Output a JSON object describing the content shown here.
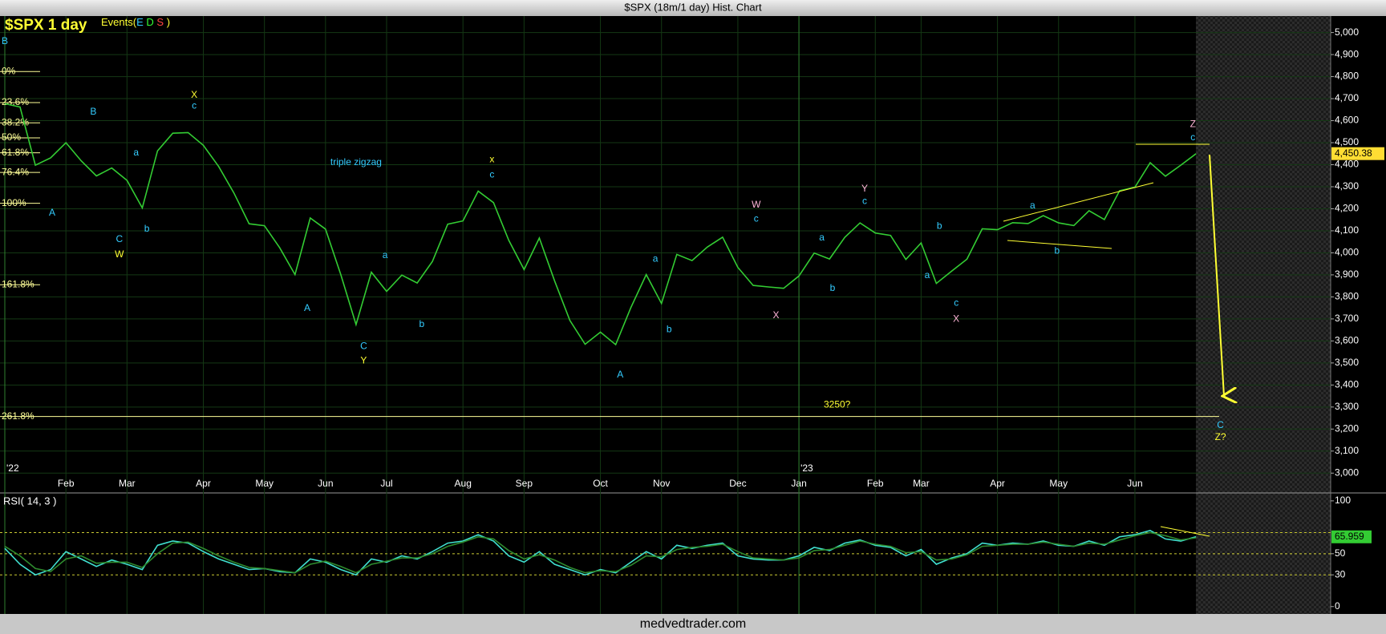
{
  "window": {
    "title": "$SPX (18m/1 day) Hist. Chart",
    "footer": "medvedtrader.com"
  },
  "chart_data": [
    {
      "type": "line",
      "title": "$SPX 1 day",
      "events": {
        "label": "Events(",
        "letters": [
          "E",
          "D",
          "S"
        ],
        "close": ")"
      },
      "categories": [
        null,
        null,
        null,
        null,
        "Feb",
        null,
        null,
        null,
        "Mar",
        null,
        null,
        null,
        null,
        "Apr",
        null,
        null,
        null,
        "May",
        null,
        null,
        null,
        "Jun",
        null,
        null,
        null,
        "Jul",
        null,
        null,
        null,
        null,
        "Aug",
        null,
        null,
        null,
        "Sep",
        null,
        null,
        null,
        null,
        "Oct",
        null,
        null,
        null,
        "Nov",
        null,
        null,
        null,
        null,
        "Dec",
        null,
        null,
        null,
        "Jan",
        null,
        null,
        null,
        null,
        "Feb",
        null,
        null,
        "Mar",
        null,
        null,
        null,
        null,
        "Apr",
        null,
        null,
        null,
        "May",
        null,
        null,
        null,
        null,
        "Jun",
        null,
        null,
        null,
        null
      ],
      "year_labels": [
        {
          "index": 0,
          "label": "'22"
        },
        {
          "index": 52,
          "label": "'23"
        }
      ],
      "series": [
        {
          "color": "#33cc33",
          "values": [
            4677,
            4662,
            4398,
            4431,
            4500,
            4418,
            4349,
            4385,
            4329,
            4204,
            4463,
            4543,
            4546,
            4488,
            4392,
            4272,
            4132,
            4123,
            4023,
            3901,
            4158,
            4108,
            3901,
            3674,
            3912,
            3825,
            3899,
            3863,
            3961,
            4130,
            4145,
            4280,
            4228,
            4057,
            3924,
            4067,
            3873,
            3693,
            3585,
            3640,
            3583,
            3752,
            3901,
            3770,
            3993,
            3965,
            4026,
            4071,
            3934,
            3852,
            3845,
            3839,
            3895,
            3999,
            3972,
            4070,
            4136,
            4090,
            4079,
            3970,
            4045,
            3861,
            3917,
            3971,
            4109,
            4105,
            4137,
            4133,
            4169,
            4136,
            4124,
            4191,
            4151,
            4282,
            4298,
            4409,
            4348,
            4398,
            4450
          ]
        }
      ],
      "last_price": {
        "value": 4450.38,
        "label": "4,450.38"
      },
      "ylim": [
        2910,
        5075
      ],
      "yticks": [
        {
          "value": 3000,
          "label": "3,000"
        },
        {
          "value": 3100,
          "label": "3,100"
        },
        {
          "value": 3200,
          "label": "3,200"
        },
        {
          "value": 3300,
          "label": "3,300"
        },
        {
          "value": 3400,
          "label": "3,400"
        },
        {
          "value": 3500,
          "label": "3,500"
        },
        {
          "value": 3600,
          "label": "3,600"
        },
        {
          "value": 3700,
          "label": "3,700"
        },
        {
          "value": 3800,
          "label": "3,800"
        },
        {
          "value": 3900,
          "label": "3,900"
        },
        {
          "value": 4000,
          "label": "4,000"
        },
        {
          "value": 4100,
          "label": "4,100"
        },
        {
          "value": 4200,
          "label": "4,200"
        },
        {
          "value": 4300,
          "label": "4,300"
        },
        {
          "value": 4400,
          "label": "4,400"
        },
        {
          "value": 4500,
          "label": "4,500"
        },
        {
          "value": 4600,
          "label": "4,600"
        },
        {
          "value": 4700,
          "label": "4,700"
        },
        {
          "value": 4800,
          "label": "4,800"
        },
        {
          "value": 4900,
          "label": "4,900"
        },
        {
          "value": 5000,
          "label": "5,000"
        }
      ],
      "grid": true,
      "fib_levels": [
        {
          "label": "0%",
          "value": 4823
        },
        {
          "label": "23.6%",
          "value": 4682
        },
        {
          "label": "38.2%",
          "value": 4590
        },
        {
          "label": "50%",
          "value": 4522
        },
        {
          "label": "61.8%",
          "value": 4454
        },
        {
          "label": "76.4%",
          "value": 4365
        },
        {
          "label": "100%",
          "value": 4225
        },
        {
          "label": "161.8%",
          "value": 3855
        },
        {
          "label": "261.8%",
          "value": 3257,
          "extended": true
        }
      ],
      "annotations": [
        {
          "text": "B",
          "color": "#33ccff",
          "x": 0,
          "y": 4960
        },
        {
          "text": "X",
          "color": "#ffff33",
          "x": 12.4,
          "y": 4715
        },
        {
          "text": "c",
          "color": "#33ccff",
          "x": 12.4,
          "y": 4667
        },
        {
          "text": "B",
          "color": "#33ccff",
          "x": 5.8,
          "y": 4639
        },
        {
          "text": "A",
          "color": "#33ccff",
          "x": 3.1,
          "y": 4181
        },
        {
          "text": "a",
          "color": "#33ccff",
          "x": 8.6,
          "y": 4454
        },
        {
          "text": "C",
          "color": "#33ccff",
          "x": 7.5,
          "y": 4060
        },
        {
          "text": "W",
          "color": "#ffff33",
          "x": 7.5,
          "y": 3992
        },
        {
          "text": "b",
          "color": "#33ccff",
          "x": 9.3,
          "y": 4108
        },
        {
          "text": "triple zigzag",
          "color": "#33ccff",
          "x": 23,
          "y": 4410
        },
        {
          "text": "A",
          "color": "#33ccff",
          "x": 19.8,
          "y": 3747
        },
        {
          "text": "a",
          "color": "#33ccff",
          "x": 24.9,
          "y": 3988
        },
        {
          "text": "b",
          "color": "#33ccff",
          "x": 27.3,
          "y": 3675
        },
        {
          "text": "C",
          "color": "#33ccff",
          "x": 23.5,
          "y": 3574
        },
        {
          "text": "Y",
          "color": "#ffff33",
          "x": 23.5,
          "y": 3510
        },
        {
          "text": "x",
          "color": "#ffff33",
          "x": 31.9,
          "y": 4422
        },
        {
          "text": "c",
          "color": "#33ccff",
          "x": 31.9,
          "y": 4353
        },
        {
          "text": "A",
          "color": "#33ccff",
          "x": 40.3,
          "y": 3446
        },
        {
          "text": "a",
          "color": "#33ccff",
          "x": 42.6,
          "y": 3972
        },
        {
          "text": "b",
          "color": "#33ccff",
          "x": 43.5,
          "y": 3651
        },
        {
          "text": "W",
          "color": "#ffb6d9",
          "x": 49.2,
          "y": 4217
        },
        {
          "text": "c",
          "color": "#33ccff",
          "x": 49.2,
          "y": 4153
        },
        {
          "text": "X",
          "color": "#ffb6d9",
          "x": 50.5,
          "y": 3715
        },
        {
          "text": "a",
          "color": "#33ccff",
          "x": 53.5,
          "y": 4068
        },
        {
          "text": "b",
          "color": "#33ccff",
          "x": 54.2,
          "y": 3839
        },
        {
          "text": "Y",
          "color": "#ffb6d9",
          "x": 56.3,
          "y": 4289
        },
        {
          "text": "c",
          "color": "#33ccff",
          "x": 56.3,
          "y": 4233
        },
        {
          "text": "b",
          "color": "#33ccff",
          "x": 61.2,
          "y": 4121
        },
        {
          "text": "a",
          "color": "#33ccff",
          "x": 60.4,
          "y": 3896
        },
        {
          "text": "c",
          "color": "#33ccff",
          "x": 62.3,
          "y": 3771
        },
        {
          "text": "X",
          "color": "#ffb6d9",
          "x": 62.3,
          "y": 3699
        },
        {
          "text": "a",
          "color": "#33ccff",
          "x": 67.3,
          "y": 4213
        },
        {
          "text": "b",
          "color": "#33ccff",
          "x": 68.9,
          "y": 4008
        },
        {
          "text": "Z",
          "color": "#ffb6d9",
          "x": 77.8,
          "y": 4582
        },
        {
          "text": "c",
          "color": "#33ccff",
          "x": 77.8,
          "y": 4522
        },
        {
          "text": "3250?",
          "color": "#ffff33",
          "x": 54.5,
          "y": 3309
        },
        {
          "text": "C",
          "color": "#33ccff",
          "x": 79.6,
          "y": 3217
        },
        {
          "text": "Z?",
          "color": "#ffff33",
          "x": 79.6,
          "y": 3161
        }
      ]
    },
    {
      "type": "line",
      "title": "RSI( 14, 3 )",
      "series": [
        {
          "color": "#40e0d0",
          "values": [
            55,
            40,
            30,
            35,
            52,
            45,
            38,
            44,
            40,
            35,
            58,
            62,
            60,
            52,
            45,
            40,
            35,
            36,
            33,
            32,
            45,
            42,
            35,
            30,
            45,
            42,
            48,
            45,
            52,
            60,
            62,
            68,
            62,
            48,
            42,
            52,
            40,
            35,
            30,
            35,
            32,
            42,
            52,
            45,
            58,
            55,
            58,
            60,
            48,
            45,
            44,
            44,
            48,
            56,
            53,
            60,
            63,
            58,
            56,
            48,
            54,
            40,
            46,
            50,
            60,
            58,
            60,
            59,
            62,
            58,
            57,
            62,
            58,
            66,
            68,
            72,
            64,
            62,
            66
          ]
        },
        {
          "color": "#2e8b2e",
          "values": [
            57,
            48,
            36,
            33,
            45,
            48,
            41,
            42,
            42,
            37,
            50,
            60,
            61,
            55,
            48,
            42,
            37,
            36,
            34,
            32,
            40,
            43,
            38,
            32,
            40,
            43,
            46,
            46,
            50,
            57,
            61,
            66,
            64,
            53,
            45,
            49,
            44,
            37,
            32,
            34,
            33,
            39,
            48,
            47,
            54,
            56,
            57,
            59,
            52,
            46,
            45,
            44,
            46,
            53,
            54,
            58,
            62,
            59,
            57,
            51,
            52,
            44,
            45,
            49,
            57,
            58,
            59,
            59,
            61,
            59,
            57,
            60,
            59,
            63,
            67,
            70,
            67,
            63,
            65
          ]
        }
      ],
      "last_value": 65.959,
      "ylim": [
        -7,
        107.5
      ],
      "yticks": [
        0,
        30,
        50,
        100
      ],
      "levels": [
        70,
        50,
        30
      ]
    }
  ]
}
